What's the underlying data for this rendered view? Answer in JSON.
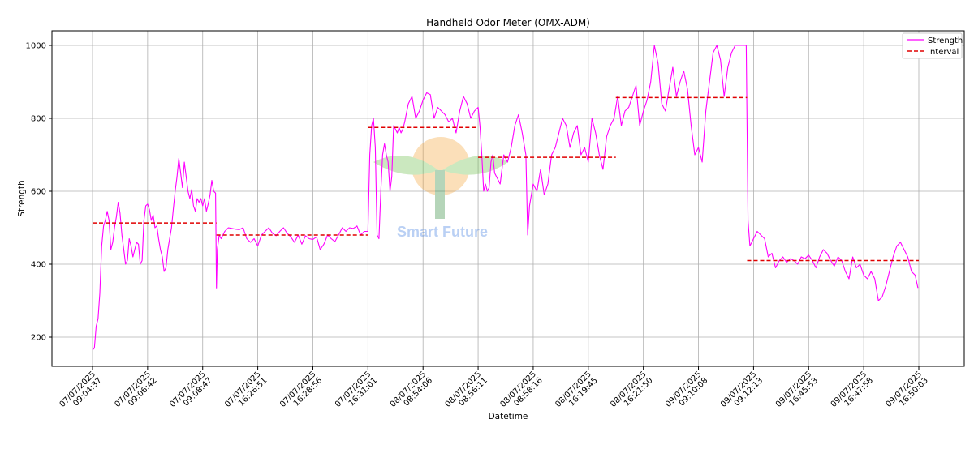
{
  "chart_data": {
    "type": "line",
    "title": "Handheld Odor Meter (OMX-ADM)",
    "xlabel": "Datetime",
    "ylabel": "Strength",
    "ylim": [
      120,
      1040
    ],
    "yticks": [
      200,
      400,
      600,
      800,
      1000
    ],
    "grid": true,
    "legend_position": "top-right",
    "x_tick_labels": [
      "07/07/2025\n09:04:37",
      "07/07/2025\n09:06:42",
      "07/07/2025\n09:08:47",
      "07/07/2025\n16:26:51",
      "07/07/2025\n16:28:56",
      "07/07/2025\n16:31:01",
      "08/07/2025\n08:54:06",
      "08/07/2025\n08:56:11",
      "08/07/2025\n08:58:16",
      "08/07/2025\n16:19:45",
      "08/07/2025\n16:21:50",
      "09/07/2025\n09:10:08",
      "09/07/2025\n09:12:13",
      "09/07/2025\n16:45:53",
      "09/07/2025\n16:47:58",
      "09/07/2025\n16:50:03"
    ],
    "series": [
      {
        "name": "Strength",
        "color": "#ff00ff",
        "style": "solid",
        "points": [
          [
            0,
            165
          ],
          [
            0.1,
            170
          ],
          [
            0.2,
            230
          ],
          [
            0.3,
            250
          ],
          [
            0.4,
            320
          ],
          [
            0.5,
            450
          ],
          [
            0.6,
            505
          ],
          [
            0.7,
            520
          ],
          [
            0.8,
            545
          ],
          [
            0.9,
            520
          ],
          [
            1.0,
            440
          ],
          [
            1.1,
            460
          ],
          [
            1.2,
            500
          ],
          [
            1.3,
            530
          ],
          [
            1.4,
            570
          ],
          [
            1.5,
            540
          ],
          [
            1.6,
            480
          ],
          [
            1.7,
            440
          ],
          [
            1.8,
            400
          ],
          [
            1.9,
            410
          ],
          [
            2.0,
            470
          ],
          [
            2.1,
            450
          ],
          [
            2.2,
            420
          ],
          [
            2.3,
            440
          ],
          [
            2.4,
            460
          ],
          [
            2.5,
            455
          ],
          [
            2.6,
            400
          ],
          [
            2.7,
            410
          ],
          [
            2.8,
            520
          ],
          [
            2.9,
            560
          ],
          [
            3.0,
            565
          ],
          [
            3.1,
            550
          ],
          [
            3.2,
            520
          ],
          [
            3.3,
            535
          ],
          [
            3.4,
            500
          ],
          [
            3.5,
            505
          ],
          [
            3.6,
            470
          ],
          [
            3.7,
            440
          ],
          [
            3.8,
            420
          ],
          [
            3.9,
            380
          ],
          [
            4.0,
            390
          ],
          [
            4.1,
            440
          ],
          [
            4.2,
            470
          ],
          [
            4.3,
            500
          ],
          [
            4.4,
            550
          ],
          [
            4.5,
            600
          ],
          [
            4.6,
            640
          ],
          [
            4.7,
            690
          ],
          [
            4.8,
            650
          ],
          [
            4.9,
            610
          ],
          [
            5.0,
            680
          ],
          [
            5.1,
            640
          ],
          [
            5.2,
            600
          ],
          [
            5.3,
            580
          ],
          [
            5.4,
            605
          ],
          [
            5.5,
            560
          ],
          [
            5.6,
            545
          ],
          [
            5.7,
            580
          ],
          [
            5.8,
            570
          ],
          [
            5.9,
            580
          ],
          [
            6.0,
            560
          ],
          [
            6.1,
            580
          ],
          [
            6.2,
            545
          ],
          [
            6.3,
            565
          ],
          [
            6.4,
            590
          ],
          [
            6.5,
            630
          ],
          [
            6.6,
            600
          ],
          [
            6.7,
            595
          ],
          [
            6.75,
            335
          ],
          [
            6.8,
            440
          ],
          [
            6.9,
            480
          ],
          [
            7.0,
            470
          ],
          [
            7.2,
            490
          ],
          [
            7.4,
            500
          ],
          [
            7.6,
            498
          ],
          [
            7.8,
            496
          ],
          [
            8.0,
            495
          ],
          [
            8.2,
            500
          ],
          [
            8.4,
            470
          ],
          [
            8.6,
            460
          ],
          [
            8.8,
            470
          ],
          [
            9.0,
            450
          ],
          [
            9.2,
            480
          ],
          [
            9.4,
            490
          ],
          [
            9.6,
            500
          ],
          [
            9.8,
            485
          ],
          [
            10.0,
            478
          ],
          [
            10.2,
            490
          ],
          [
            10.4,
            500
          ],
          [
            10.6,
            485
          ],
          [
            10.8,
            475
          ],
          [
            11.0,
            460
          ],
          [
            11.2,
            480
          ],
          [
            11.4,
            455
          ],
          [
            11.6,
            478
          ],
          [
            11.8,
            470
          ],
          [
            12.0,
            468
          ],
          [
            12.2,
            475
          ],
          [
            12.4,
            440
          ],
          [
            12.6,
            455
          ],
          [
            12.8,
            480
          ],
          [
            13.0,
            470
          ],
          [
            13.2,
            462
          ],
          [
            13.4,
            480
          ],
          [
            13.6,
            500
          ],
          [
            13.8,
            490
          ],
          [
            14.0,
            500
          ],
          [
            14.2,
            498
          ],
          [
            14.4,
            505
          ],
          [
            14.6,
            480
          ],
          [
            14.8,
            490
          ],
          [
            14.95,
            490
          ],
          [
            15.0,
            490
          ],
          [
            15.1,
            700
          ],
          [
            15.2,
            780
          ],
          [
            15.3,
            800
          ],
          [
            15.4,
            720
          ],
          [
            15.5,
            480
          ],
          [
            15.6,
            470
          ],
          [
            15.7,
            600
          ],
          [
            15.8,
            700
          ],
          [
            15.9,
            730
          ],
          [
            16.0,
            700
          ],
          [
            16.1,
            680
          ],
          [
            16.2,
            600
          ],
          [
            16.3,
            640
          ],
          [
            16.4,
            780
          ],
          [
            16.5,
            770
          ],
          [
            16.6,
            760
          ],
          [
            16.7,
            775
          ],
          [
            16.8,
            760
          ],
          [
            16.9,
            770
          ],
          [
            17.0,
            790
          ],
          [
            17.2,
            840
          ],
          [
            17.4,
            860
          ],
          [
            17.6,
            800
          ],
          [
            17.8,
            820
          ],
          [
            18.0,
            850
          ],
          [
            18.2,
            870
          ],
          [
            18.4,
            865
          ],
          [
            18.6,
            800
          ],
          [
            18.8,
            830
          ],
          [
            19.0,
            820
          ],
          [
            19.2,
            810
          ],
          [
            19.4,
            790
          ],
          [
            19.6,
            800
          ],
          [
            19.8,
            760
          ],
          [
            20.0,
            820
          ],
          [
            20.2,
            860
          ],
          [
            20.4,
            840
          ],
          [
            20.6,
            800
          ],
          [
            20.8,
            820
          ],
          [
            21.0,
            830
          ],
          [
            21.1,
            780
          ],
          [
            21.2,
            700
          ],
          [
            21.3,
            600
          ],
          [
            21.4,
            620
          ],
          [
            21.5,
            600
          ],
          [
            21.6,
            610
          ],
          [
            21.7,
            680
          ],
          [
            21.8,
            700
          ],
          [
            21.9,
            650
          ],
          [
            22.0,
            640
          ],
          [
            22.2,
            620
          ],
          [
            22.4,
            700
          ],
          [
            22.6,
            680
          ],
          [
            22.8,
            720
          ],
          [
            23.0,
            780
          ],
          [
            23.2,
            810
          ],
          [
            23.4,
            760
          ],
          [
            23.6,
            700
          ],
          [
            23.7,
            480
          ],
          [
            23.8,
            560
          ],
          [
            24.0,
            620
          ],
          [
            24.2,
            600
          ],
          [
            24.4,
            660
          ],
          [
            24.6,
            590
          ],
          [
            24.8,
            620
          ],
          [
            25.0,
            700
          ],
          [
            25.2,
            720
          ],
          [
            25.4,
            760
          ],
          [
            25.6,
            800
          ],
          [
            25.8,
            780
          ],
          [
            26.0,
            720
          ],
          [
            26.2,
            760
          ],
          [
            26.4,
            780
          ],
          [
            26.6,
            700
          ],
          [
            26.8,
            720
          ],
          [
            27.0,
            680
          ],
          [
            27.2,
            800
          ],
          [
            27.4,
            760
          ],
          [
            27.6,
            700
          ],
          [
            27.8,
            660
          ],
          [
            28.0,
            750
          ],
          [
            28.2,
            780
          ],
          [
            28.4,
            800
          ],
          [
            28.6,
            860
          ],
          [
            28.8,
            780
          ],
          [
            29.0,
            820
          ],
          [
            29.2,
            830
          ],
          [
            29.4,
            860
          ],
          [
            29.6,
            890
          ],
          [
            29.8,
            780
          ],
          [
            30.0,
            820
          ],
          [
            30.2,
            850
          ],
          [
            30.4,
            900
          ],
          [
            30.6,
            1000
          ],
          [
            30.8,
            950
          ],
          [
            31.0,
            840
          ],
          [
            31.2,
            820
          ],
          [
            31.4,
            880
          ],
          [
            31.6,
            940
          ],
          [
            31.8,
            860
          ],
          [
            32.0,
            900
          ],
          [
            32.2,
            930
          ],
          [
            32.4,
            880
          ],
          [
            32.6,
            780
          ],
          [
            32.8,
            700
          ],
          [
            33.0,
            720
          ],
          [
            33.2,
            680
          ],
          [
            33.4,
            820
          ],
          [
            33.6,
            900
          ],
          [
            33.8,
            980
          ],
          [
            34.0,
            1000
          ],
          [
            34.2,
            960
          ],
          [
            34.4,
            860
          ],
          [
            34.6,
            940
          ],
          [
            34.8,
            980
          ],
          [
            35.0,
            1000
          ],
          [
            35.2,
            1000
          ],
          [
            35.4,
            1000
          ],
          [
            35.6,
            1000
          ],
          [
            35.7,
            520
          ],
          [
            35.8,
            450
          ],
          [
            36.0,
            470
          ],
          [
            36.2,
            490
          ],
          [
            36.4,
            480
          ],
          [
            36.6,
            470
          ],
          [
            36.8,
            420
          ],
          [
            37.0,
            430
          ],
          [
            37.2,
            390
          ],
          [
            37.4,
            410
          ],
          [
            37.6,
            420
          ],
          [
            37.8,
            405
          ],
          [
            38.0,
            415
          ],
          [
            38.2,
            410
          ],
          [
            38.4,
            400
          ],
          [
            38.6,
            420
          ],
          [
            38.8,
            415
          ],
          [
            39.0,
            425
          ],
          [
            39.2,
            410
          ],
          [
            39.4,
            390
          ],
          [
            39.6,
            420
          ],
          [
            39.8,
            440
          ],
          [
            40.0,
            430
          ],
          [
            40.2,
            410
          ],
          [
            40.4,
            395
          ],
          [
            40.6,
            420
          ],
          [
            40.8,
            410
          ],
          [
            41.0,
            380
          ],
          [
            41.2,
            360
          ],
          [
            41.4,
            420
          ],
          [
            41.6,
            390
          ],
          [
            41.8,
            400
          ],
          [
            42.0,
            370
          ],
          [
            42.2,
            360
          ],
          [
            42.4,
            380
          ],
          [
            42.6,
            360
          ],
          [
            42.8,
            300
          ],
          [
            43.0,
            310
          ],
          [
            43.2,
            340
          ],
          [
            43.4,
            380
          ],
          [
            43.6,
            420
          ],
          [
            43.8,
            450
          ],
          [
            44.0,
            460
          ],
          [
            44.2,
            440
          ],
          [
            44.4,
            420
          ],
          [
            44.6,
            380
          ],
          [
            44.8,
            370
          ],
          [
            44.95,
            335
          ]
        ]
      }
    ],
    "intervals": {
      "name": "Interval",
      "color": "#e00000",
      "style": "dashed",
      "segments": [
        {
          "x0": 0,
          "x1": 6.75,
          "y": 513
        },
        {
          "x0": 6.75,
          "x1": 15.0,
          "y": 480
        },
        {
          "x0": 15.0,
          "x1": 21.0,
          "y": 775
        },
        {
          "x0": 21.0,
          "x1": 28.5,
          "y": 693
        },
        {
          "x0": 28.5,
          "x1": 35.65,
          "y": 857
        },
        {
          "x0": 35.65,
          "x1": 45.0,
          "y": 410
        }
      ]
    },
    "watermark": "Smart Future"
  }
}
